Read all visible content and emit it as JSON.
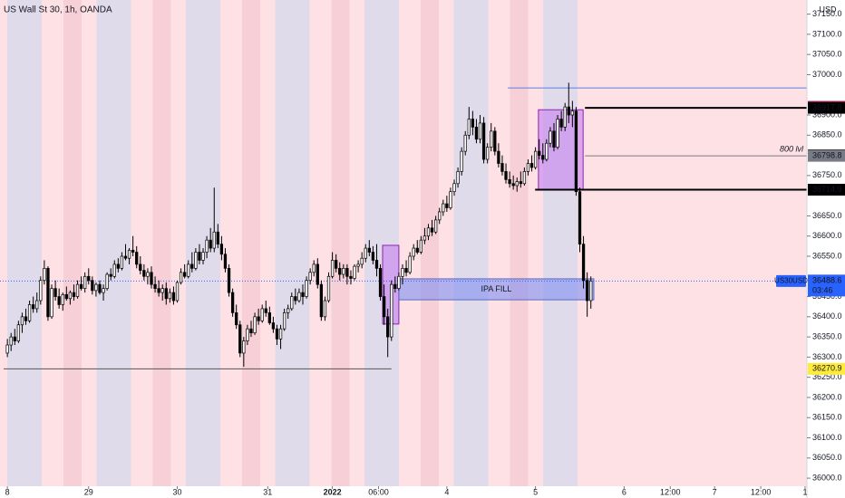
{
  "chart_data": {
    "type": "candlestick",
    "title": "US Wall St 30, 1h, OANDA",
    "currency": "USD",
    "up_color": "#ffffff",
    "down_color": "#000000",
    "wick_color": "#000000",
    "xlim": [
      -2,
      216.5
    ],
    "ylim": [
      35980,
      37185
    ],
    "xticks": [
      {
        "value": 0,
        "label": "8"
      },
      {
        "value": 22,
        "label": "29"
      },
      {
        "value": 46,
        "label": "30"
      },
      {
        "value": 70.5,
        "label": "31"
      },
      {
        "value": 88,
        "label": "2022"
      },
      {
        "value": 100.5,
        "label": "06:00"
      },
      {
        "value": 119,
        "label": "4"
      },
      {
        "value": 143,
        "label": "5"
      },
      {
        "value": 167,
        "label": "6"
      },
      {
        "value": 179.5,
        "label": "12:00"
      },
      {
        "value": 191.5,
        "label": "7"
      },
      {
        "value": 204,
        "label": "12:00"
      },
      {
        "value": 216,
        "label": "1"
      }
    ],
    "yticks": [
      {
        "value": 36000,
        "label": "36000.0"
      },
      {
        "value": 36050,
        "label": "36050.0"
      },
      {
        "value": 36100,
        "label": "36100.0"
      },
      {
        "value": 36150,
        "label": "36150.0"
      },
      {
        "value": 36200,
        "label": "36200.0"
      },
      {
        "value": 36250,
        "label": "36250.0"
      },
      {
        "value": 36300,
        "label": "36300.0"
      },
      {
        "value": 36350,
        "label": "36350.0"
      },
      {
        "value": 36400,
        "label": "36400.0"
      },
      {
        "value": 36450,
        "label": "36450.0"
      },
      {
        "value": 36550,
        "label": "36550.0"
      },
      {
        "value": 36600,
        "label": "36600.0"
      },
      {
        "value": 36650,
        "label": "36650.0"
      },
      {
        "value": 36750,
        "label": "36750.0"
      },
      {
        "value": 36850,
        "label": "36850.0"
      },
      {
        "value": 36900,
        "label": "36900.0"
      },
      {
        "value": 37000,
        "label": "37000.0"
      },
      {
        "value": 37050,
        "label": "37050.0"
      },
      {
        "value": 37100,
        "label": "37100.0"
      },
      {
        "value": 37150,
        "label": "37150.0"
      }
    ],
    "ohlc": [
      [
        36310,
        36345,
        36300,
        36330
      ],
      [
        36330,
        36360,
        36315,
        36350
      ],
      [
        36350,
        36370,
        36330,
        36340
      ],
      [
        36340,
        36390,
        36335,
        36380
      ],
      [
        36380,
        36410,
        36360,
        36400
      ],
      [
        36400,
        36420,
        36380,
        36390
      ],
      [
        36390,
        36440,
        36385,
        36430
      ],
      [
        36430,
        36450,
        36410,
        36420
      ],
      [
        36420,
        36460,
        36410,
        36440
      ],
      [
        36440,
        36500,
        36430,
        36490
      ],
      [
        36490,
        36540,
        36480,
        36520
      ],
      [
        36520,
        36525,
        36390,
        36400
      ],
      [
        36400,
        36480,
        36395,
        36470
      ],
      [
        36470,
        36490,
        36440,
        36450
      ],
      [
        36450,
        36470,
        36420,
        36430
      ],
      [
        36430,
        36460,
        36415,
        36455
      ],
      [
        36455,
        36475,
        36440,
        36445
      ],
      [
        36445,
        36465,
        36430,
        36460
      ],
      [
        36460,
        36480,
        36440,
        36450
      ],
      [
        36450,
        36490,
        36445,
        36480
      ],
      [
        36480,
        36500,
        36465,
        36470
      ],
      [
        36470,
        36510,
        36460,
        36500
      ],
      [
        36500,
        36520,
        36480,
        36490
      ],
      [
        36490,
        36500,
        36455,
        36465
      ],
      [
        36465,
        36485,
        36450,
        36480
      ],
      [
        36480,
        36490,
        36455,
        36460
      ],
      [
        36460,
        36480,
        36440,
        36470
      ],
      [
        36470,
        36510,
        36465,
        36505
      ],
      [
        36505,
        36520,
        36490,
        36500
      ],
      [
        36500,
        36540,
        36495,
        36530
      ],
      [
        36530,
        36545,
        36510,
        36520
      ],
      [
        36520,
        36560,
        36515,
        36550
      ],
      [
        36550,
        36580,
        36540,
        36545
      ],
      [
        36545,
        36570,
        36530,
        36565
      ],
      [
        36565,
        36600,
        36550,
        36560
      ],
      [
        36560,
        36575,
        36520,
        36530
      ],
      [
        36530,
        36550,
        36505,
        36515
      ],
      [
        36515,
        36530,
        36490,
        36500
      ],
      [
        36500,
        36520,
        36480,
        36510
      ],
      [
        36510,
        36525,
        36470,
        36480
      ],
      [
        36480,
        36500,
        36460,
        36470
      ],
      [
        36470,
        36490,
        36450,
        36460
      ],
      [
        36460,
        36480,
        36440,
        36470
      ],
      [
        36470,
        36485,
        36430,
        36445
      ],
      [
        36445,
        36470,
        36435,
        36460
      ],
      [
        36460,
        36475,
        36430,
        36440
      ],
      [
        36440,
        36490,
        36435,
        36485
      ],
      [
        36485,
        36520,
        36480,
        36510
      ],
      [
        36510,
        36530,
        36495,
        36500
      ],
      [
        36500,
        36540,
        36495,
        36530
      ],
      [
        36530,
        36560,
        36510,
        36520
      ],
      [
        36520,
        36570,
        36515,
        36560
      ],
      [
        36560,
        36580,
        36530,
        36540
      ],
      [
        36540,
        36570,
        36530,
        36560
      ],
      [
        36560,
        36600,
        36545,
        36590
      ],
      [
        36590,
        36620,
        36560,
        36570
      ],
      [
        36570,
        36720,
        36560,
        36610
      ],
      [
        36610,
        36630,
        36570,
        36580
      ],
      [
        36580,
        36600,
        36540,
        36555
      ],
      [
        36555,
        36570,
        36510,
        36520
      ],
      [
        36520,
        36530,
        36450,
        36460
      ],
      [
        36460,
        36470,
        36400,
        36410
      ],
      [
        36410,
        36430,
        36370,
        36380
      ],
      [
        36380,
        36390,
        36300,
        36310
      ],
      [
        36310,
        36350,
        36276,
        36340
      ],
      [
        36340,
        36380,
        36330,
        36370
      ],
      [
        36370,
        36390,
        36350,
        36360
      ],
      [
        36360,
        36410,
        36355,
        36400
      ],
      [
        36400,
        36420,
        36380,
        36390
      ],
      [
        36390,
        36430,
        36385,
        36420
      ],
      [
        36420,
        36440,
        36400,
        36410
      ],
      [
        36410,
        36425,
        36380,
        36385
      ],
      [
        36385,
        36400,
        36360,
        36370
      ],
      [
        36370,
        36380,
        36330,
        36345
      ],
      [
        36345,
        36380,
        36320,
        36370
      ],
      [
        36370,
        36420,
        36365,
        36410
      ],
      [
        36410,
        36430,
        36395,
        36420
      ],
      [
        36420,
        36460,
        36415,
        36450
      ],
      [
        36450,
        36470,
        36430,
        36440
      ],
      [
        36440,
        36470,
        36435,
        36460
      ],
      [
        36460,
        36480,
        36430,
        36450
      ],
      [
        36450,
        36500,
        36445,
        36490
      ],
      [
        36490,
        36520,
        36480,
        36510
      ],
      [
        36510,
        36540,
        36500,
        36530
      ],
      [
        36530,
        36545,
        36470,
        36480
      ],
      [
        36480,
        36490,
        36390,
        36400
      ],
      [
        36400,
        36450,
        36390,
        36440
      ],
      [
        36440,
        36510,
        36435,
        36500
      ],
      [
        36500,
        36560,
        36495,
        36540
      ],
      [
        36540,
        36555,
        36510,
        36520
      ],
      [
        36520,
        36535,
        36490,
        36505
      ],
      [
        36505,
        36530,
        36495,
        36520
      ],
      [
        36520,
        36530,
        36480,
        36500
      ],
      [
        36500,
        36515,
        36480,
        36495
      ],
      [
        36495,
        36530,
        36490,
        36525
      ],
      [
        36525,
        36540,
        36510,
        36530
      ],
      [
        36530,
        36560,
        36520,
        36545
      ],
      [
        36545,
        36580,
        36535,
        36570
      ],
      [
        36570,
        36590,
        36550,
        36560
      ],
      [
        36560,
        36575,
        36530,
        36540
      ],
      [
        36540,
        36580,
        36500,
        36520
      ],
      [
        36520,
        36530,
        36440,
        36450
      ],
      [
        36450,
        36480,
        36380,
        36400
      ],
      [
        36400,
        36420,
        36300,
        36350
      ],
      [
        36350,
        36490,
        36340,
        36480
      ],
      [
        36480,
        36500,
        36460,
        36470
      ],
      [
        36470,
        36510,
        36465,
        36500
      ],
      [
        36500,
        36530,
        36480,
        36520
      ],
      [
        36520,
        36540,
        36500,
        36510
      ],
      [
        36510,
        36560,
        36505,
        36550
      ],
      [
        36550,
        36580,
        36540,
        36570
      ],
      [
        36570,
        36590,
        36555,
        36560
      ],
      [
        36560,
        36600,
        36555,
        36590
      ],
      [
        36590,
        36620,
        36580,
        36600
      ],
      [
        36600,
        36630,
        36590,
        36620
      ],
      [
        36620,
        36640,
        36600,
        36610
      ],
      [
        36610,
        36650,
        36605,
        36640
      ],
      [
        36640,
        36670,
        36630,
        36660
      ],
      [
        36660,
        36690,
        36650,
        36680
      ],
      [
        36680,
        36700,
        36660,
        36670
      ],
      [
        36670,
        36720,
        36665,
        36710
      ],
      [
        36710,
        36740,
        36700,
        36730
      ],
      [
        36730,
        36770,
        36720,
        36760
      ],
      [
        36760,
        36820,
        36750,
        36810
      ],
      [
        36810,
        36860,
        36800,
        36850
      ],
      [
        36850,
        36920,
        36840,
        36890
      ],
      [
        36890,
        36910,
        36850,
        36870
      ],
      [
        36870,
        36890,
        36830,
        36840
      ],
      [
        36840,
        36900,
        36830,
        36880
      ],
      [
        36880,
        36895,
        36780,
        36790
      ],
      [
        36790,
        36830,
        36780,
        36820
      ],
      [
        36820,
        36880,
        36810,
        36860
      ],
      [
        36860,
        36870,
        36800,
        36810
      ],
      [
        36810,
        36830,
        36770,
        36780
      ],
      [
        36780,
        36800,
        36750,
        36760
      ],
      [
        36760,
        36780,
        36730,
        36740
      ],
      [
        36740,
        36760,
        36720,
        36730
      ],
      [
        36730,
        36750,
        36715,
        36725
      ],
      [
        36725,
        36745,
        36710,
        36735
      ],
      [
        36735,
        36760,
        36720,
        36730
      ],
      [
        36730,
        36770,
        36725,
        36760
      ],
      [
        36760,
        36790,
        36750,
        36780
      ],
      [
        36780,
        36800,
        36760,
        36770
      ],
      [
        36770,
        36820,
        36765,
        36810
      ],
      [
        36810,
        36840,
        36790,
        36800
      ],
      [
        36800,
        36830,
        36780,
        36790
      ],
      [
        36790,
        36840,
        36785,
        36830
      ],
      [
        36830,
        36870,
        36820,
        36860
      ],
      [
        36860,
        36880,
        36810,
        36820
      ],
      [
        36820,
        36900,
        36815,
        36890
      ],
      [
        36890,
        36910,
        36860,
        36870
      ],
      [
        36870,
        36930,
        36860,
        36920
      ],
      [
        36920,
        36980,
        36880,
        36900
      ],
      [
        36900,
        36935,
        36870,
        36910
      ],
      [
        36910,
        36920,
        36700,
        36710
      ],
      [
        36710,
        36720,
        36560,
        36580
      ],
      [
        36580,
        36600,
        36470,
        36490
      ],
      [
        36490,
        36510,
        36400,
        36440
      ],
      [
        36440,
        36500,
        36420,
        36488.6
      ]
    ],
    "zones": [
      {
        "x": [
          101.6,
          106
        ],
        "y": [
          36382,
          36577
        ],
        "color": "#c77ef0",
        "border": "#8e24aa"
      },
      {
        "x": [
          143.8,
          155.9
        ],
        "y": [
          36714,
          36913
        ],
        "color": "#c77ef0",
        "border": "#8e24aa"
      },
      {
        "x": [
          106,
          158.8
        ],
        "y": [
          36442,
          36494
        ],
        "color": "#7f8ff2",
        "border": "#5c6bc0",
        "label": "IPA FILL"
      }
    ],
    "lines": [
      {
        "value": 36967,
        "from": 135.5,
        "color": "#5b7fe0",
        "width": 1
      },
      {
        "value": 36917.8,
        "from": 156.4,
        "color": "#000000",
        "width": 2
      },
      {
        "value": 36798.8,
        "from": 156.4,
        "color": "#787b86",
        "width": 1,
        "note": "800 lvl"
      },
      {
        "value": 36714.9,
        "from": 142.9,
        "color": "#000000",
        "width": 2
      },
      {
        "value": 36270.9,
        "from": -1,
        "to": 104,
        "color": "#555555",
        "width": 1
      }
    ],
    "price_labels": [
      {
        "value": 36920.3,
        "color": "#e91e63",
        "text_color": "#ffffff"
      },
      {
        "value": 36917.8,
        "color": "#000000",
        "text_color": "#ffffff"
      },
      {
        "value": 36800,
        "label": "36800.0",
        "color": "#000000",
        "text_color": "#ffffff"
      },
      {
        "value": 36798.8,
        "color": "#787b86",
        "text_color": "#ffffff"
      },
      {
        "value": 36714.9,
        "color": "#000000",
        "text_color": "#ffffff"
      },
      {
        "value": 36270.9,
        "color": "#ffeb3b",
        "text_color": "#131722"
      }
    ],
    "last": {
      "symbol": "US30USD",
      "value": 36488.6,
      "countdown": "03:46",
      "color": "#2962ff"
    }
  }
}
